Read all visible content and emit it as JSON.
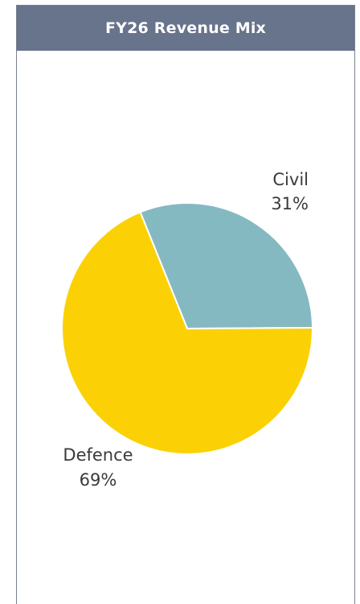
{
  "chart_data": {
    "type": "pie",
    "title": "FY26 Revenue Mix",
    "slices": [
      {
        "label": "Civil",
        "percent_label": "31%",
        "value": 31,
        "color": "#85b9c2"
      },
      {
        "label": "Defence",
        "percent_label": "69%",
        "value": 69,
        "color": "#fbd105"
      }
    ],
    "start_angle_deg": -112,
    "direction": "clockwise",
    "legend": "none"
  }
}
